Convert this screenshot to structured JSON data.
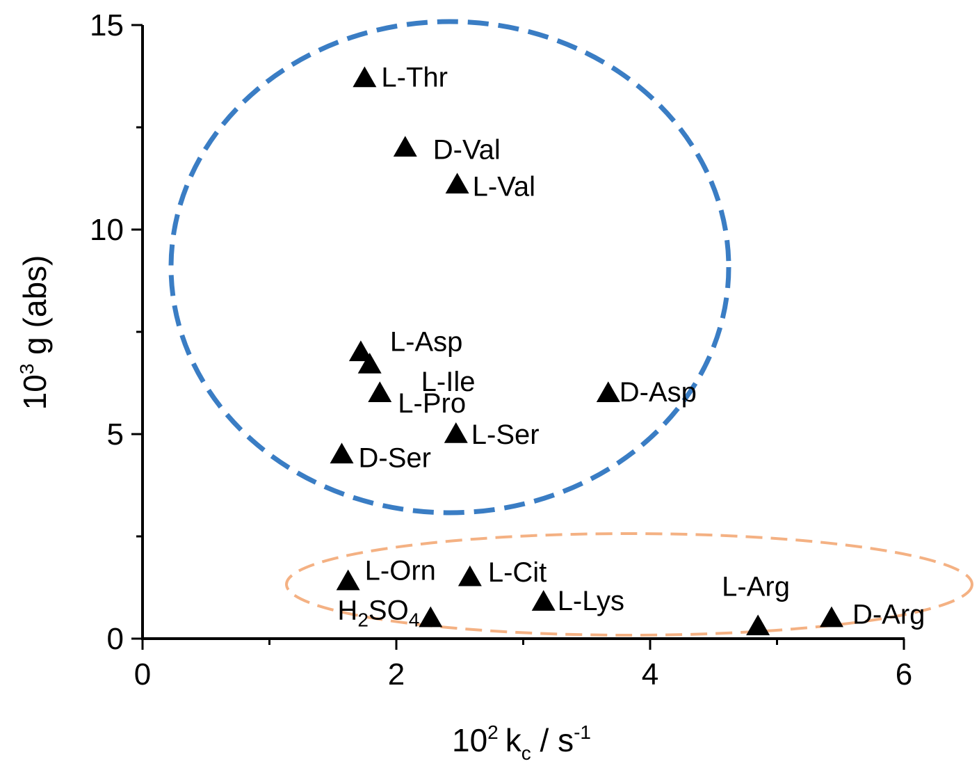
{
  "chart_data": {
    "type": "scatter",
    "title": "",
    "xlabel": {
      "base": "10",
      "base_sup": "2",
      "var": "k",
      "var_sub": "c",
      "sep": " / ",
      "unit": "s",
      "unit_sup": "-1"
    },
    "ylabel": {
      "base": "10",
      "base_sup": "3",
      "rest": " g (abs)"
    },
    "xlim": [
      0,
      6
    ],
    "ylim": [
      0,
      15
    ],
    "x_ticks": [
      "0",
      "2",
      "4",
      "6"
    ],
    "y_ticks": [
      "0",
      "5",
      "10",
      "15"
    ],
    "grid": false,
    "marker": "triangle",
    "series": [
      {
        "points": [
          {
            "x": 1.75,
            "y": 13.7,
            "label": "L-Thr"
          },
          {
            "x": 2.07,
            "y": 12.0,
            "label": "D-Val"
          },
          {
            "x": 2.48,
            "y": 11.1,
            "label": "L-Val"
          },
          {
            "x": 1.72,
            "y": 7.0,
            "label": "L-Asp"
          },
          {
            "x": 1.79,
            "y": 6.7,
            "label": "L-Ile"
          },
          {
            "x": 1.87,
            "y": 6.0,
            "label": "L-Pro"
          },
          {
            "x": 3.67,
            "y": 6.0,
            "label": "D-Asp"
          },
          {
            "x": 2.47,
            "y": 5.0,
            "label": "L-Ser"
          },
          {
            "x": 1.57,
            "y": 4.5,
            "label": "D-Ser"
          },
          {
            "x": 1.62,
            "y": 1.4,
            "label": "L-Orn"
          },
          {
            "x": 2.58,
            "y": 1.5,
            "label": "L-Cit"
          },
          {
            "x": 3.16,
            "y": 0.9,
            "label": "L-Lys"
          },
          {
            "x": 2.27,
            "y": 0.5,
            "label": "H2SO4",
            "label_parts": [
              "H",
              "2",
              "SO",
              "4"
            ]
          },
          {
            "x": 4.85,
            "y": 0.3,
            "label": "L-Arg"
          },
          {
            "x": 5.43,
            "y": 0.5,
            "label": "D-Arg"
          }
        ]
      }
    ],
    "ellipse_colors": {
      "upper_cluster": "#3a7dc4",
      "lower_cluster": "#f4b183"
    }
  }
}
